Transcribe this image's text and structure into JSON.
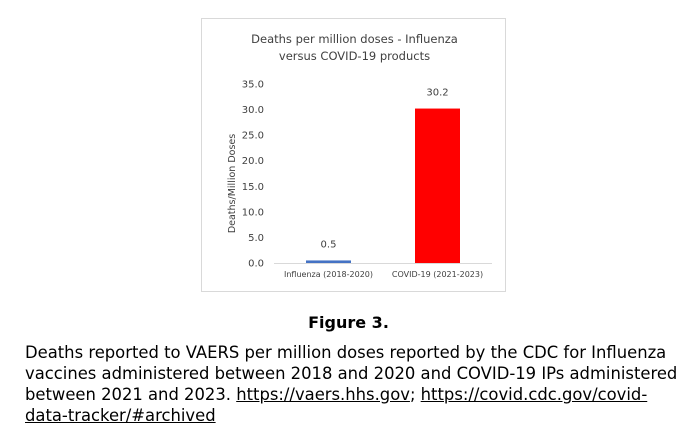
{
  "chart_data": {
    "type": "bar",
    "title_lines": [
      "Deaths per million doses - Influenza",
      "versus COVID-19 products"
    ],
    "categories": [
      "Influenza (2018-2020)",
      "COVID-19 (2021-2023)"
    ],
    "values": [
      0.5,
      30.2
    ],
    "value_labels": [
      "0.5",
      "30.2"
    ],
    "bar_colors": [
      "#4472c4",
      "#ff0000"
    ],
    "xlabel": "",
    "ylabel": "Deaths/Million Doses",
    "ylim": [
      0,
      35
    ],
    "yticks": [
      "0.0",
      "5.0",
      "10.0",
      "15.0",
      "20.0",
      "25.0",
      "30.0",
      "35.0"
    ],
    "grid": false,
    "legend": "none"
  },
  "figure": {
    "label": "Figure 3.",
    "caption_text": "Deaths reported to VAERS per million doses reported by the CDC for Influenza vaccines administered between 2018 and 2020 and COVID-19 IPs administered between 2021 and 2023. ",
    "link1": "https://vaers.hhs.gov",
    "separator": "; ",
    "link2": "https://covid.cdc.gov/covid-data-tracker/#archived"
  }
}
